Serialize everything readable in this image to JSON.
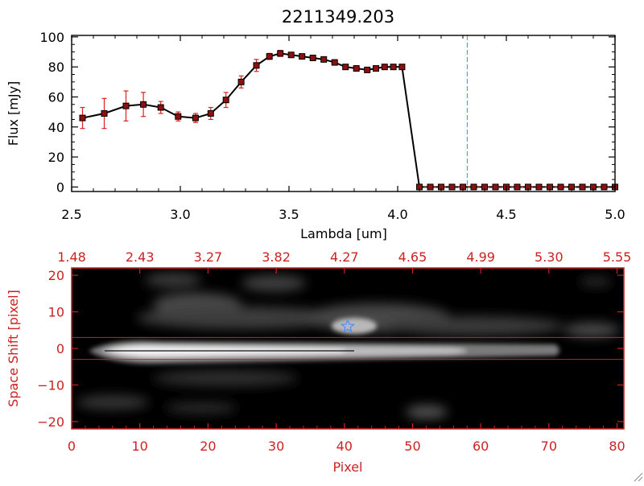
{
  "page": {
    "title": "2211349.203"
  },
  "colors": {
    "spectrum_line": "#000000",
    "marker_fill": "#8b1010",
    "error_bar": "#dd2020",
    "dashed_marker": "#3a8fd0",
    "image_axis": "#cc2222",
    "image_background": "#000000",
    "star_marker": "#4a90ff"
  },
  "chart_data": [
    {
      "type": "line",
      "title": "2211349.203",
      "xlabel": "Lambda [um]",
      "ylabel": "Flux [mJy]",
      "xlim": [
        2.5,
        5.0
      ],
      "ylim": [
        -3,
        101
      ],
      "x_ticks": [
        2.5,
        3.0,
        3.5,
        4.0,
        4.5,
        5.0
      ],
      "x_tick_labels": [
        "2.5",
        "3.0",
        "3.5",
        "4.0",
        "4.5",
        "5.0"
      ],
      "y_ticks": [
        0,
        20,
        40,
        60,
        80,
        100
      ],
      "y_tick_labels": [
        "0",
        "20",
        "40",
        "60",
        "80",
        "100"
      ],
      "grid": false,
      "vertical_marker": {
        "x": 4.32,
        "style": "dashed"
      },
      "series": [
        {
          "x": [
            2.55,
            2.65,
            2.75,
            2.83,
            2.91,
            2.99,
            3.07,
            3.14,
            3.21,
            3.28,
            3.35,
            3.41,
            3.46,
            3.51,
            3.56,
            3.61,
            3.66,
            3.71,
            3.76,
            3.81,
            3.86,
            3.9,
            3.94,
            3.98,
            4.02,
            4.1,
            4.15,
            4.2,
            4.25,
            4.3,
            4.35,
            4.4,
            4.45,
            4.5,
            4.55,
            4.6,
            4.65,
            4.7,
            4.75,
            4.8,
            4.85,
            4.9,
            4.95,
            5.0
          ],
          "y": [
            46,
            49,
            54,
            55,
            53,
            47,
            46,
            49,
            58,
            70,
            81,
            87,
            89,
            88,
            87,
            86,
            85,
            83,
            80,
            79,
            78,
            79,
            80,
            80,
            80,
            0,
            0,
            0,
            0,
            0,
            0,
            0,
            0,
            0,
            0,
            0,
            0,
            0,
            0,
            0,
            0,
            0,
            0,
            0
          ],
          "yerr": [
            7,
            10,
            10,
            8,
            4,
            3,
            3,
            4,
            5,
            4,
            4,
            2,
            2,
            1,
            1,
            1,
            1,
            1,
            1,
            1,
            1,
            1,
            1,
            1,
            1,
            0,
            0,
            0,
            0,
            0,
            0,
            0,
            0,
            0,
            0,
            0,
            0,
            0,
            0,
            0,
            0,
            0,
            0,
            0
          ]
        }
      ]
    },
    {
      "type": "heatmap",
      "xlabel": "Pixel",
      "ylabel": "Space Shift [pixel]",
      "xlim": [
        0,
        81
      ],
      "ylim": [
        -22,
        22
      ],
      "x_ticks": [
        0,
        10,
        20,
        30,
        40,
        50,
        60,
        70,
        80
      ],
      "x_tick_labels": [
        "0",
        "10",
        "20",
        "30",
        "40",
        "50",
        "60",
        "70",
        "80"
      ],
      "y_ticks": [
        -20,
        -10,
        0,
        10,
        20
      ],
      "y_tick_labels": [
        "−20",
        "−10",
        "0",
        "10",
        "20"
      ],
      "top_axis_ticks": [
        0,
        10,
        20,
        30,
        40,
        50,
        60,
        70,
        80
      ],
      "top_axis_labels": [
        "1.48",
        "2.43",
        "3.27",
        "3.82",
        "4.27",
        "4.65",
        "4.99",
        "5.30",
        "5.55"
      ],
      "extraction_aperture": [
        -3,
        3
      ],
      "source_marker": {
        "x": 40.5,
        "y": 6,
        "symbol": "star"
      },
      "grid": false
    }
  ]
}
